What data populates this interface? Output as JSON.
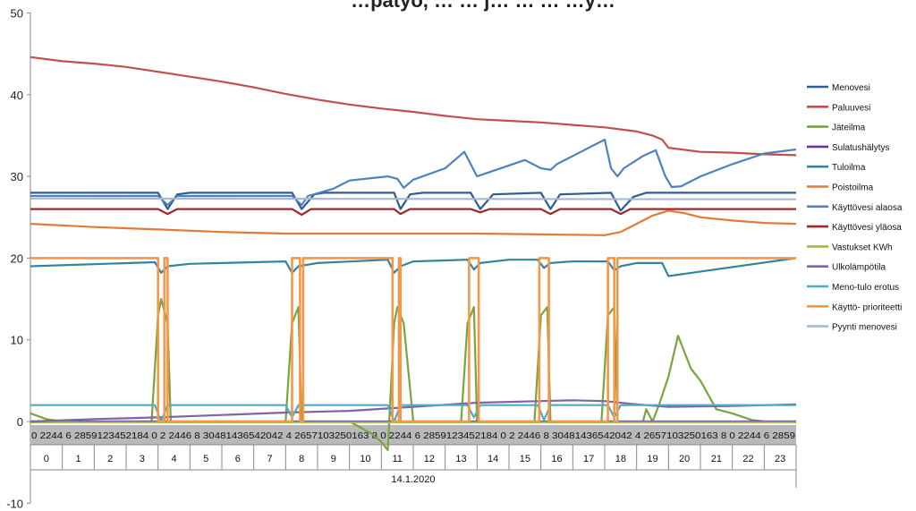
{
  "chart_data": {
    "type": "line",
    "title": "…patyö, … … j… … … …y…",
    "date_label": "14.1.2020",
    "ylim": [
      -10,
      50
    ],
    "yticks": [
      -10,
      0,
      10,
      20,
      30,
      40,
      50
    ],
    "xlim": [
      0,
      24
    ],
    "hours": [
      "0",
      "1",
      "2",
      "3",
      "4",
      "5",
      "6",
      "7",
      "8",
      "9",
      "10",
      "11",
      "12",
      "13",
      "14",
      "15",
      "16",
      "17",
      "18",
      "19",
      "20",
      "21",
      "22",
      "23"
    ],
    "minute_strip": "0 2244 6 2859123452184 0 2 2446 8 30481436542042 4 2657103250163 8 0 2244 6 2859123452184 0 2 2446 8 30481436542042 4 2657103250163 8 0 2244 6 2859",
    "grid": false,
    "legend_position": "right",
    "series": [
      {
        "name": "Menovesi",
        "color": "#2e5d8f",
        "x": [
          0,
          4.0,
          4.3,
          4.6,
          5,
          8.2,
          8.5,
          8.9,
          9.2,
          11.4,
          11.6,
          11.9,
          12.3,
          13.8,
          14.1,
          14.5,
          16.0,
          16.3,
          16.6,
          18.2,
          18.5,
          18.9,
          19.3,
          24
        ],
        "y": [
          28.0,
          28.0,
          26.0,
          27.8,
          28.0,
          28.0,
          26.0,
          27.8,
          28.0,
          28.0,
          26.0,
          27.8,
          28.0,
          28.0,
          26.0,
          27.8,
          28.0,
          26.0,
          27.8,
          28.0,
          25.8,
          27.5,
          28.0,
          28.0
        ]
      },
      {
        "name": "Paluuvesi",
        "color": "#c0504d",
        "x": [
          0,
          1,
          2,
          3,
          4,
          5,
          6,
          7,
          8,
          9,
          10,
          11,
          12,
          13,
          14,
          15,
          16,
          17,
          18,
          19,
          19.5,
          19.8,
          20,
          21,
          22,
          23,
          24
        ],
        "y": [
          44.6,
          44.1,
          43.8,
          43.4,
          42.8,
          42.2,
          41.6,
          40.9,
          40.1,
          39.4,
          38.8,
          38.3,
          37.9,
          37.4,
          37.0,
          36.8,
          36.6,
          36.3,
          36.0,
          35.5,
          35.0,
          34.5,
          33.5,
          33.0,
          32.9,
          32.7,
          32.6
        ]
      },
      {
        "name": "Jäteilma",
        "color": "#77a540",
        "x": [
          0,
          0.5,
          1,
          3.8,
          4.0,
          4.1,
          4.3,
          4.4,
          8.0,
          8.2,
          8.4,
          8.5,
          9.5,
          10,
          10.7,
          11.0,
          11.2,
          11.4,
          11.5,
          11.7,
          12,
          13.5,
          13.7,
          13.9,
          14,
          15.8,
          16.0,
          16.2,
          16.3,
          17.9,
          18.1,
          18.3,
          18.4,
          19.2,
          19.3,
          19.5,
          19.7,
          20,
          20.3,
          20.7,
          20.9,
          21,
          21.5,
          22,
          22.6,
          23,
          24
        ],
        "y": [
          1,
          0.3,
          0,
          0,
          13,
          15,
          12,
          0,
          0,
          12,
          14,
          0,
          0,
          0,
          -1.5,
          -2.5,
          -3.5,
          12,
          14,
          12,
          0,
          0,
          12,
          14,
          0,
          0,
          13,
          14,
          0,
          0,
          13,
          14,
          0,
          0,
          1.5,
          0,
          2,
          5.5,
          10.5,
          6.5,
          5.5,
          5,
          1.5,
          1,
          0.2,
          0,
          0
        ]
      },
      {
        "name": "Sulatushälytys",
        "color": "#7030a0",
        "x": [
          0,
          24
        ],
        "y": [
          0,
          0
        ]
      },
      {
        "name": "Tuloilma",
        "color": "#31859c",
        "x": [
          0,
          3.9,
          4.1,
          4.3,
          5,
          8.0,
          8.2,
          8.4,
          9,
          11.2,
          11.4,
          11.6,
          12,
          13.7,
          13.9,
          14.1,
          15,
          15.9,
          16.1,
          16.3,
          17,
          18.1,
          18.3,
          18.5,
          19,
          19.8,
          20,
          24
        ],
        "y": [
          19,
          19.5,
          18.2,
          19,
          19.3,
          19.6,
          18.2,
          19,
          19.4,
          19.8,
          18.2,
          19,
          19.6,
          19.8,
          18.6,
          19.4,
          19.8,
          19.8,
          18.8,
          19.4,
          19.6,
          19.6,
          18.5,
          19,
          19.4,
          19.4,
          17.8,
          20
        ]
      },
      {
        "name": "Poistoilma",
        "color": "#e07b39",
        "x": [
          0,
          2,
          4,
          6,
          8,
          10,
          12,
          14,
          16,
          18,
          18.5,
          19,
          19.5,
          20,
          20.5,
          21,
          22,
          23,
          24
        ],
        "y": [
          24.2,
          23.8,
          23.5,
          23.2,
          23.0,
          23.0,
          23.0,
          23.0,
          22.9,
          22.8,
          23.2,
          24.2,
          25.2,
          25.8,
          25.5,
          25.0,
          24.6,
          24.3,
          24.2
        ]
      },
      {
        "name": "Käyttövesi alaosa",
        "color": "#4f81bd",
        "x": [
          0,
          4,
          4.3,
          4.6,
          8.2,
          8.5,
          8.7,
          9.5,
          10,
          11.2,
          11.5,
          11.7,
          12,
          13,
          13.6,
          14,
          15.5,
          16.0,
          16.3,
          16.5,
          17,
          18.0,
          18.2,
          18.4,
          18.6,
          19.2,
          19.6,
          19.9,
          20.1,
          20.4,
          21,
          22,
          23,
          24
        ],
        "y": [
          27.6,
          27.6,
          26.5,
          27.6,
          27.6,
          26.5,
          27.6,
          28.5,
          29.5,
          30,
          29.7,
          28.6,
          29.6,
          31,
          33,
          30,
          32,
          31,
          30.8,
          31.5,
          32.5,
          34.5,
          31,
          30,
          31,
          32.5,
          33.2,
          30,
          28.7,
          28.8,
          30,
          31.5,
          32.8,
          33.3
        ]
      },
      {
        "name": "Käyttövesi yläosa",
        "color": "#a0282a",
        "x": [
          0,
          4.0,
          4.3,
          4.6,
          5,
          8.2,
          8.5,
          8.8,
          9,
          11.4,
          11.6,
          11.9,
          12,
          13.8,
          14.1,
          14.4,
          14.6,
          16.0,
          16.3,
          16.6,
          17,
          18.2,
          18.5,
          18.8,
          19,
          24
        ],
        "y": [
          26,
          26,
          25.4,
          26,
          26,
          26,
          25.3,
          26,
          26,
          26,
          25.4,
          26,
          26,
          26,
          25.6,
          26,
          26,
          26,
          25.4,
          26,
          26,
          26,
          25.4,
          26,
          26,
          26
        ]
      },
      {
        "name": "Vastukset KWh",
        "color": "#9bbb59",
        "x": [
          0,
          24
        ],
        "y": [
          -0.1,
          -0.1
        ]
      },
      {
        "name": "Ulkolämpötila",
        "color": "#8064a2",
        "x": [
          0,
          2,
          4,
          6,
          8,
          10,
          12,
          14,
          16,
          17,
          18,
          19,
          20,
          22,
          24
        ],
        "y": [
          0,
          0.3,
          0.5,
          0.8,
          1.1,
          1.3,
          1.8,
          2.3,
          2.5,
          2.6,
          2.5,
          2.1,
          1.8,
          1.9,
          2.1
        ]
      },
      {
        "name": "Meno-tulo erotus",
        "color": "#4bacc6",
        "x": [
          0,
          3.9,
          4.1,
          4.3,
          8.0,
          8.2,
          8.4,
          11.2,
          11.4,
          11.6,
          13.7,
          13.9,
          14.1,
          15.9,
          16.1,
          16.3,
          18.1,
          18.3,
          18.5,
          24
        ],
        "y": [
          2,
          2,
          0,
          2,
          2,
          0.5,
          2,
          2,
          0,
          2,
          2,
          0.5,
          2,
          2,
          0.2,
          2,
          2,
          0.5,
          2,
          2
        ]
      },
      {
        "name": "Käyttö- prioriteetti",
        "color": "#f79646",
        "x": [
          0,
          4.0,
          4.0,
          4.2,
          4.2,
          4.3,
          4.3,
          8.2,
          8.2,
          8.45,
          8.45,
          8.55,
          8.55,
          11.35,
          11.35,
          11.55,
          11.55,
          11.6,
          11.6,
          13.75,
          13.75,
          14.05,
          14.05,
          15.95,
          15.95,
          16.25,
          16.25,
          18.1,
          18.1,
          18.3,
          18.3,
          18.4,
          18.4,
          24
        ],
        "y": [
          20,
          20,
          0,
          0,
          20,
          20,
          0,
          0,
          20,
          20,
          0,
          0,
          20,
          20,
          0,
          0,
          20,
          20,
          0,
          0,
          20,
          20,
          0,
          0,
          20,
          20,
          0,
          0,
          20,
          20,
          0,
          0,
          20,
          20
        ]
      },
      {
        "name": "Pyynti menovesi",
        "color": "#a6b8d2",
        "x": [
          0,
          24
        ],
        "y": [
          27.3,
          27.2
        ]
      }
    ]
  }
}
